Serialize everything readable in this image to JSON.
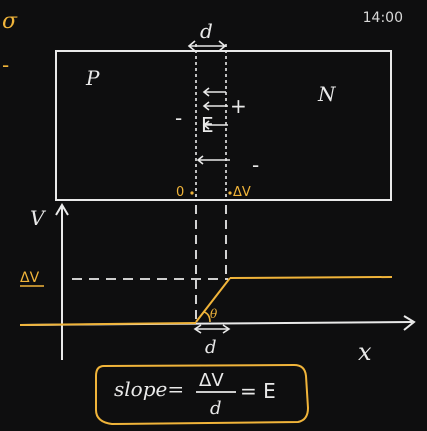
{
  "status_bar": {
    "time": "14:00"
  },
  "colors": {
    "background": "#0e0e0f",
    "chalk": "#e9e9e9",
    "highlight": "#f0b43a"
  },
  "diagram": {
    "p_region": "P",
    "n_region": "N",
    "width_label": "d",
    "field_label": "E",
    "left_sign": "-",
    "right_sign": "+",
    "minus_sign": "-",
    "zero_label": "0",
    "dv_label": "ΔV"
  },
  "graph": {
    "y_axis": "V",
    "x_axis": "x",
    "level_label": "ΔV",
    "angle_label": "θ",
    "base_label": "d"
  },
  "formula": {
    "lhs": "slope=",
    "numerator": "ΔV",
    "denominator": "d",
    "rhs": "= E"
  },
  "margin_marks": {
    "top": "σ",
    "dash": "-"
  }
}
